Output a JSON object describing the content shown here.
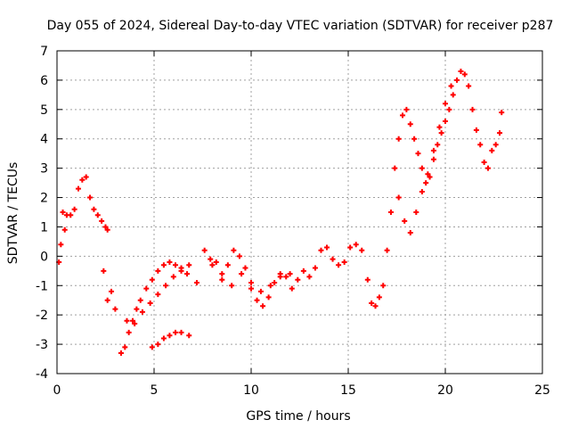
{
  "chart_data": {
    "type": "scatter",
    "title": "Day 055 of 2024, Sidereal Day-to-day VTEC variation (SDTVAR) for receiver p287",
    "xlabel": "GPS time / hours",
    "ylabel": "SDTVAR / TECUs",
    "xlim": [
      0,
      25
    ],
    "ylim": [
      -4,
      7
    ],
    "xticks": [
      0,
      5,
      10,
      15,
      20,
      25
    ],
    "yticks": [
      -4,
      -3,
      -2,
      -1,
      0,
      1,
      2,
      3,
      4,
      5,
      6,
      7
    ],
    "grid": true,
    "marker": "plus",
    "color": "#ff0000",
    "series": [
      {
        "name": "SDTVAR",
        "x": [
          0.1,
          0.2,
          0.3,
          0.4,
          0.5,
          0.7,
          0.9,
          1.1,
          1.3,
          1.5,
          1.7,
          1.9,
          2.1,
          2.3,
          2.5,
          2.6,
          2.4,
          2.6,
          2.8,
          3.0,
          3.3,
          3.5,
          3.7,
          3.9,
          4.1,
          4.3,
          4.6,
          4.9,
          5.2,
          5.5,
          5.8,
          6.1,
          6.4,
          6.7,
          4.9,
          5.2,
          5.5,
          5.8,
          6.1,
          6.4,
          6.8,
          3.6,
          4.0,
          4.4,
          4.8,
          5.2,
          5.6,
          6.0,
          6.4,
          6.8,
          7.2,
          7.6,
          7.9,
          8.2,
          8.5,
          8.8,
          9.1,
          9.4,
          9.7,
          10.0,
          10.3,
          10.6,
          10.9,
          11.2,
          11.5,
          11.8,
          12.1,
          12.4,
          12.7,
          13.0,
          13.3,
          13.6,
          13.9,
          14.2,
          14.5,
          14.8,
          15.1,
          15.4,
          15.7,
          16.0,
          16.2,
          16.4,
          16.6,
          16.8,
          17.0,
          17.2,
          17.4,
          17.6,
          17.8,
          18.0,
          18.2,
          18.4,
          18.6,
          18.8,
          19.0,
          19.2,
          19.4,
          19.6,
          19.8,
          20.0,
          20.2,
          20.4,
          20.6,
          20.8,
          21.0,
          21.2,
          21.4,
          21.6,
          21.8,
          22.0,
          22.2,
          22.4,
          22.6,
          22.8,
          22.9,
          17.6,
          17.9,
          18.2,
          18.5,
          18.8,
          19.1,
          19.4,
          19.7,
          20.0,
          20.3,
          8.0,
          8.5,
          9.0,
          9.5,
          10.0,
          10.5,
          11.0,
          11.5,
          12.0
        ],
        "y": [
          -0.2,
          0.4,
          1.5,
          0.9,
          1.4,
          1.4,
          1.6,
          2.3,
          2.6,
          2.7,
          2.0,
          1.6,
          1.4,
          1.2,
          1.0,
          0.9,
          -0.5,
          -1.5,
          -1.2,
          -1.8,
          -3.3,
          -3.1,
          -2.6,
          -2.2,
          -1.8,
          -1.5,
          -1.1,
          -0.8,
          -0.5,
          -0.3,
          -0.2,
          -0.3,
          -0.4,
          -0.6,
          -3.1,
          -3.0,
          -2.8,
          -2.7,
          -2.6,
          -2.6,
          -2.7,
          -2.2,
          -2.3,
          -1.9,
          -1.6,
          -1.3,
          -1.0,
          -0.7,
          -0.5,
          -0.3,
          -0.9,
          0.2,
          -0.1,
          -0.2,
          -0.6,
          -0.3,
          0.2,
          0.0,
          -0.4,
          -1.1,
          -1.5,
          -1.7,
          -1.4,
          -0.9,
          -0.6,
          -0.7,
          -1.1,
          -0.8,
          -0.5,
          -0.7,
          -0.4,
          0.2,
          0.3,
          -0.1,
          -0.3,
          -0.2,
          0.3,
          0.4,
          0.2,
          -0.8,
          -1.6,
          -1.7,
          -1.4,
          -1.0,
          0.2,
          1.5,
          3.0,
          4.0,
          4.8,
          5.0,
          4.5,
          4.0,
          3.5,
          3.0,
          2.5,
          2.7,
          3.3,
          3.8,
          4.2,
          4.6,
          5.0,
          5.5,
          6.0,
          6.3,
          6.2,
          5.8,
          5.0,
          4.3,
          3.8,
          3.2,
          3.0,
          3.6,
          3.8,
          4.2,
          4.9,
          2.0,
          1.2,
          0.8,
          1.5,
          2.2,
          2.8,
          3.6,
          4.4,
          5.2,
          5.8,
          -0.3,
          -0.8,
          -1.0,
          -0.6,
          -0.9,
          -1.2,
          -1.0,
          -0.7,
          -0.6
        ]
      }
    ]
  }
}
